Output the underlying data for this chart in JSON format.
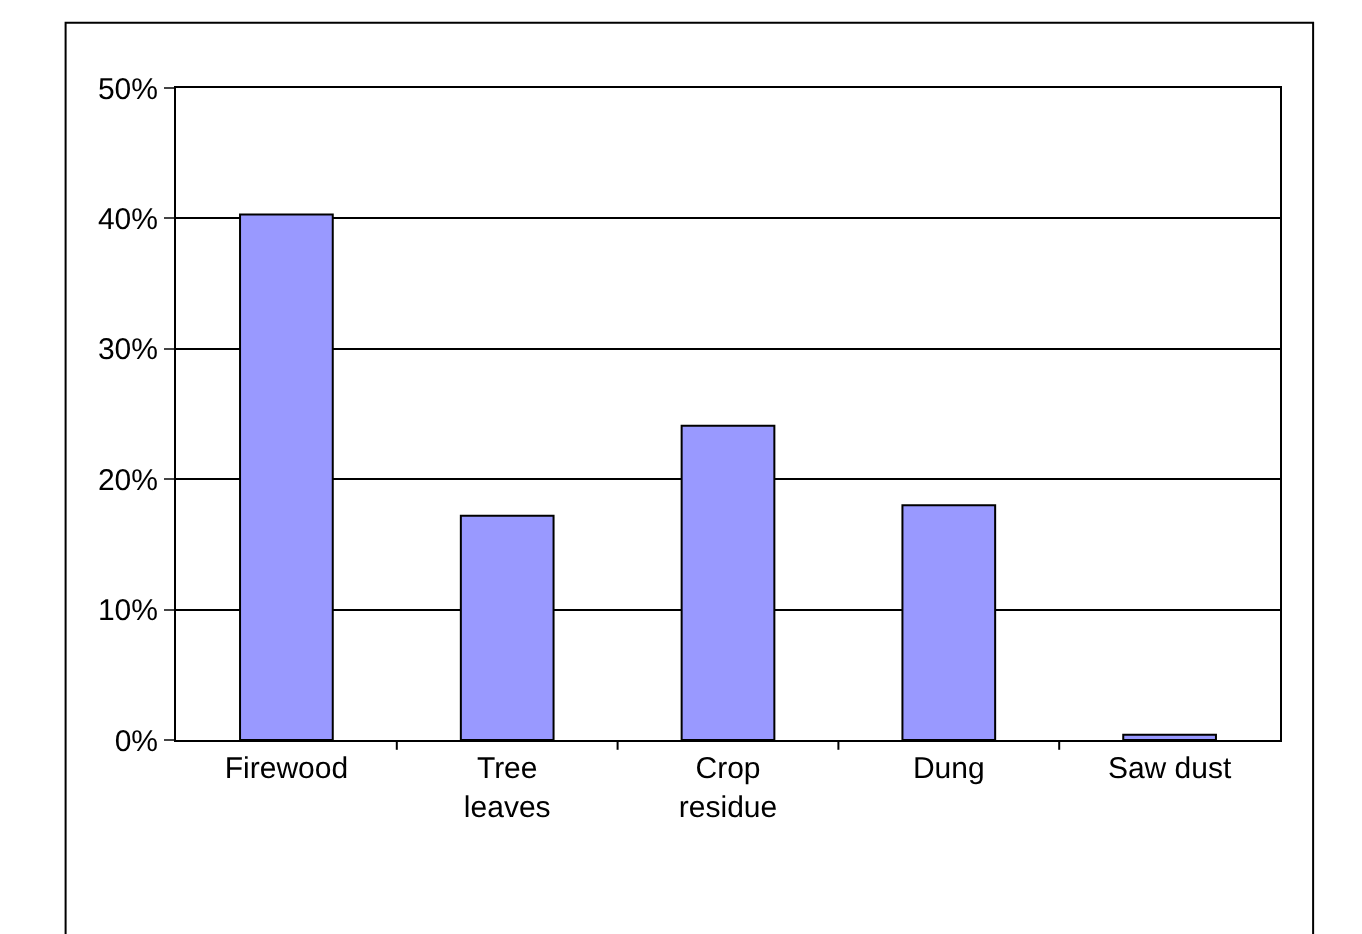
{
  "chart_data": {
    "type": "bar",
    "categories": [
      "Firewood",
      "Tree\nleaves",
      "Crop\nresidue",
      "Dung",
      "Saw dust"
    ],
    "values": [
      40.3,
      17.2,
      24.1,
      18.0,
      0.4
    ],
    "color": "#9999ff",
    "ylim": [
      0,
      50
    ],
    "yticks": [
      {
        "value": 0,
        "label": "0%"
      },
      {
        "value": 10,
        "label": "10%"
      },
      {
        "value": 20,
        "label": "20%"
      },
      {
        "value": 30,
        "label": "30%"
      },
      {
        "value": 40,
        "label": "40%"
      },
      {
        "value": 50,
        "label": "50%"
      }
    ],
    "grid": "y"
  }
}
